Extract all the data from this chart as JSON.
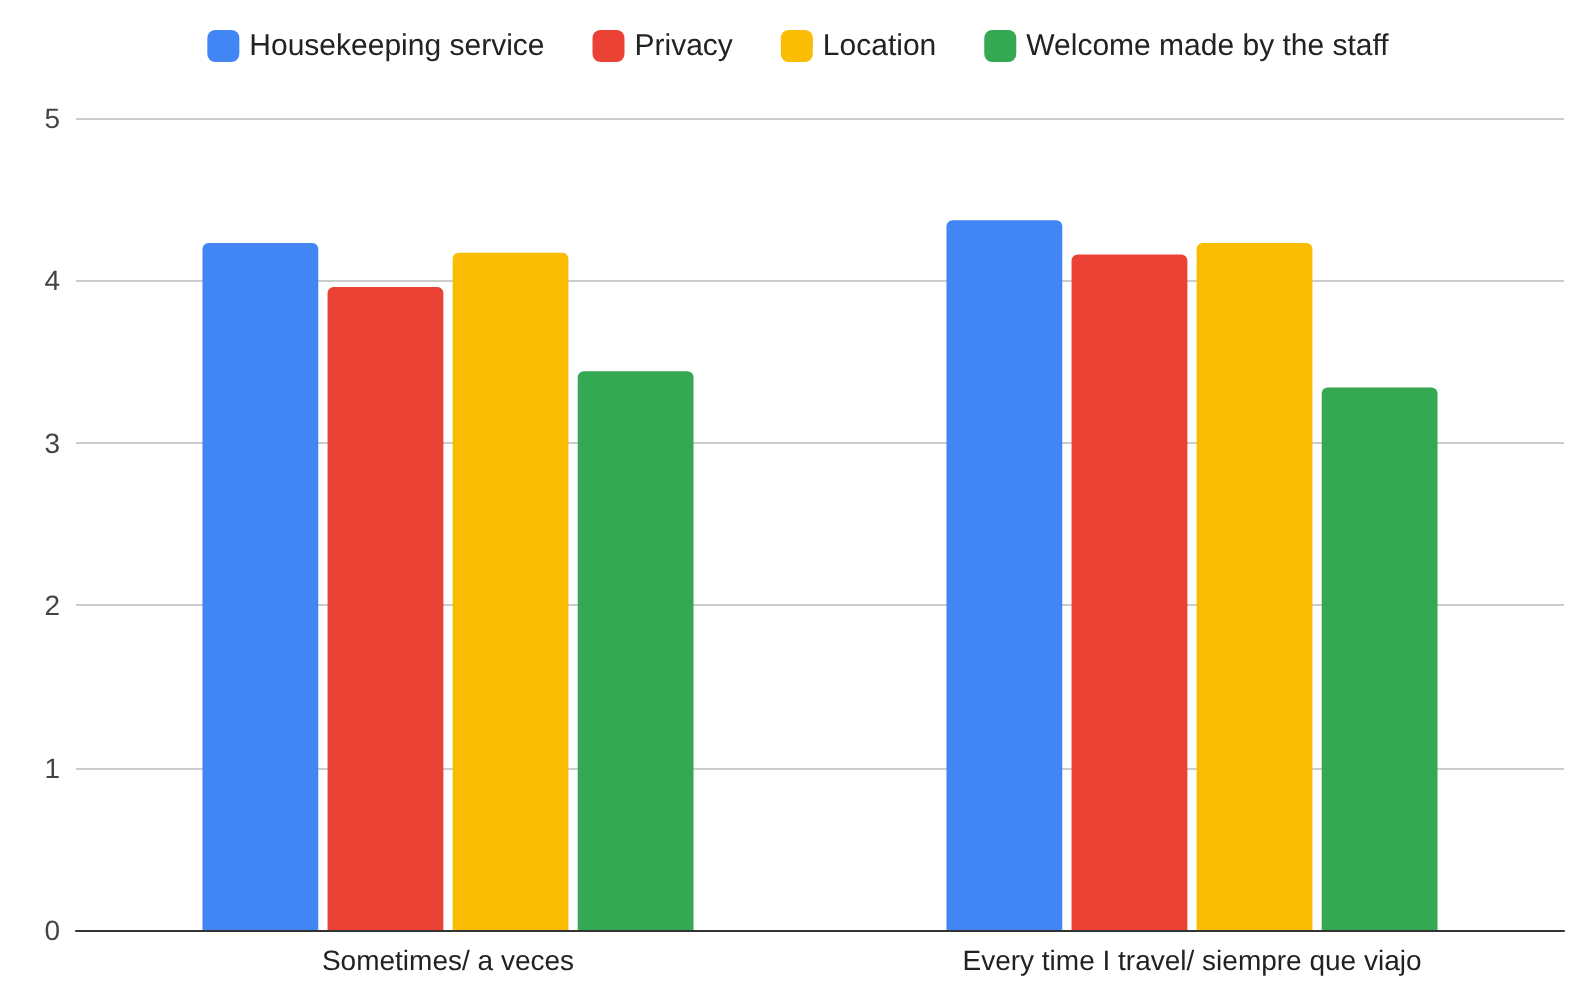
{
  "chart_data": {
    "type": "bar",
    "categories": [
      "Sometimes/ a veces",
      "Every time I travel/ siempre que viajo"
    ],
    "series": [
      {
        "name": "Housekeeping service",
        "color": "#4285f4",
        "values": [
          4.23,
          4.37
        ]
      },
      {
        "name": "Privacy",
        "color": "#ea4335",
        "values": [
          3.96,
          4.16
        ]
      },
      {
        "name": "Location",
        "color": "#fbbc04",
        "values": [
          4.17,
          4.23
        ]
      },
      {
        "name": "Welcome made by the staff",
        "color": "#34a853",
        "values": [
          3.44,
          3.34
        ]
      }
    ],
    "ylim": [
      0,
      5
    ],
    "yticks": [
      0,
      1,
      2,
      3,
      4,
      5
    ],
    "grid": "y",
    "legend": "top"
  }
}
